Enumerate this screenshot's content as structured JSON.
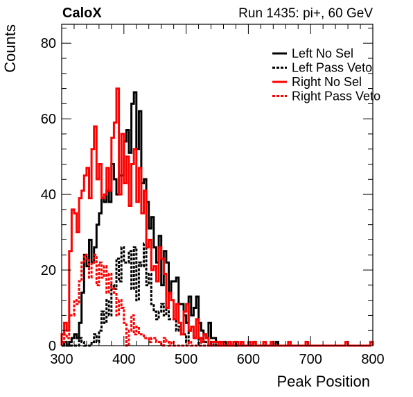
{
  "header": {
    "left_label": "CaloX",
    "right_label": "Run 1435: pi+, 60 GeV"
  },
  "chart_data": {
    "type": "line",
    "title": "",
    "xlabel": "Peak Position",
    "ylabel": "Counts",
    "xlim": [
      300,
      800
    ],
    "ylim": [
      0,
      85
    ],
    "x_ticks": [
      300,
      400,
      500,
      600,
      700,
      800
    ],
    "y_ticks": [
      0,
      20,
      40,
      60,
      80
    ],
    "bin_width": 4,
    "grid": false,
    "legend_position": "top-right",
    "series": [
      {
        "name": "Left No Sel",
        "color": "#000000",
        "style": "solid",
        "x": [
          300,
          304,
          308,
          312,
          316,
          320,
          324,
          328,
          332,
          336,
          340,
          344,
          348,
          352,
          356,
          360,
          364,
          368,
          372,
          376,
          380,
          384,
          388,
          392,
          396,
          400,
          404,
          408,
          412,
          416,
          420,
          424,
          428,
          432,
          436,
          440,
          444,
          448,
          452,
          456,
          460,
          464,
          468,
          472,
          476,
          480,
          484,
          488,
          492,
          496,
          500,
          504,
          508,
          512,
          516,
          520,
          524,
          528,
          532,
          536,
          540,
          544,
          548,
          552,
          556,
          560,
          564,
          568,
          572,
          576,
          580,
          584,
          588,
          592,
          596,
          600,
          604,
          608,
          612,
          616,
          620,
          624,
          628,
          632,
          636,
          640,
          644,
          648,
          652,
          656,
          660,
          664,
          668,
          672,
          676,
          680,
          684,
          688,
          692,
          696,
          700
        ],
        "values": [
          0,
          1,
          0,
          1,
          2,
          3,
          2,
          6,
          14,
          24,
          21,
          28,
          22,
          26,
          32,
          35,
          39,
          38,
          41,
          38,
          48,
          44,
          40,
          45,
          45,
          54,
          57,
          51,
          64,
          67,
          52,
          62,
          43,
          44,
          38,
          31,
          34,
          26,
          22,
          29,
          16,
          25,
          22,
          14,
          17,
          17,
          18,
          11,
          11,
          8,
          6,
          13,
          8,
          10,
          13,
          6,
          4,
          3,
          2,
          6,
          2,
          2,
          1,
          1,
          0,
          1,
          0,
          0,
          0,
          0,
          1,
          0,
          0,
          0,
          0,
          0,
          0,
          1,
          0,
          0,
          0,
          0,
          0,
          0,
          0,
          0,
          1,
          0,
          0,
          0,
          0,
          0,
          0,
          0,
          0,
          0,
          0,
          0,
          1,
          0,
          0
        ]
      },
      {
        "name": "Left Pass Veto",
        "color": "#000000",
        "style": "dashed",
        "x": [
          300,
          304,
          308,
          312,
          316,
          320,
          324,
          328,
          332,
          336,
          340,
          344,
          348,
          352,
          356,
          360,
          364,
          368,
          372,
          376,
          380,
          384,
          388,
          392,
          396,
          400,
          404,
          408,
          412,
          416,
          420,
          424,
          428,
          432,
          436,
          440,
          444,
          448,
          452,
          456,
          460,
          464,
          468,
          472,
          476,
          480,
          484,
          488,
          492,
          496,
          500,
          504,
          508,
          512,
          516,
          520,
          524,
          528,
          532,
          536,
          540,
          544,
          548,
          552,
          556,
          560,
          564,
          568,
          572,
          576,
          580,
          584,
          588,
          592,
          596,
          600,
          604,
          608,
          612,
          616,
          620,
          624,
          628,
          632,
          636,
          640,
          644,
          648,
          652,
          656,
          660,
          664,
          668,
          672,
          676,
          680,
          684,
          688,
          692,
          696,
          700
        ],
        "values": [
          0,
          0,
          0,
          0,
          0,
          0,
          0,
          2,
          1,
          0,
          0,
          0,
          1,
          3,
          1,
          4,
          9,
          6,
          12,
          8,
          16,
          15,
          23,
          17,
          26,
          22,
          22,
          25,
          15,
          26,
          12,
          22,
          21,
          27,
          16,
          19,
          11,
          9,
          7,
          9,
          11,
          8,
          10,
          7,
          7,
          7,
          4,
          5,
          3,
          3,
          1,
          4,
          4,
          2,
          2,
          0,
          2,
          1,
          1,
          0,
          0,
          1,
          0,
          0,
          0,
          0,
          0,
          0,
          0,
          0,
          0,
          0,
          0,
          0,
          0,
          0,
          0,
          0,
          0,
          0,
          0,
          0,
          0,
          0,
          0,
          0,
          0,
          0,
          0,
          0,
          0,
          0,
          0,
          0,
          0,
          0,
          0,
          0,
          0,
          0,
          0
        ]
      },
      {
        "name": "Right No Sel",
        "color": "#ff0000",
        "style": "solid",
        "x": [
          300,
          304,
          308,
          312,
          316,
          320,
          324,
          328,
          332,
          336,
          340,
          344,
          348,
          352,
          356,
          360,
          364,
          368,
          372,
          376,
          380,
          384,
          388,
          392,
          396,
          400,
          404,
          408,
          412,
          416,
          420,
          424,
          428,
          432,
          436,
          440,
          444,
          448,
          452,
          456,
          460,
          464,
          468,
          472,
          476,
          480,
          484,
          488,
          492,
          496,
          500,
          504,
          508,
          512,
          516,
          520,
          524,
          528,
          532,
          536,
          540,
          544,
          548,
          552,
          556,
          560,
          564,
          568,
          572,
          576,
          580,
          584,
          588,
          592,
          596,
          600,
          604,
          608,
          612,
          616,
          620,
          624,
          628,
          632,
          636,
          640,
          644,
          648,
          652,
          656,
          660,
          664,
          668,
          672,
          676,
          680,
          684,
          688,
          692,
          696,
          700,
          704,
          708,
          712,
          716,
          720,
          724,
          728,
          732,
          736,
          740,
          744,
          748,
          752,
          756,
          760,
          764,
          768,
          772,
          776,
          780,
          784,
          788,
          792,
          796
        ],
        "values": [
          3,
          6,
          4,
          25,
          36,
          35,
          30,
          39,
          41,
          45,
          47,
          39,
          52,
          58,
          44,
          48,
          39,
          40,
          47,
          41,
          55,
          59,
          68,
          40,
          56,
          43,
          50,
          37,
          48,
          52,
          38,
          47,
          35,
          41,
          26,
          28,
          20,
          21,
          17,
          26,
          23,
          19,
          10,
          14,
          12,
          7,
          11,
          6,
          3,
          9,
          11,
          4,
          5,
          2,
          7,
          2,
          1,
          3,
          2,
          0,
          1,
          1,
          1,
          0,
          1,
          0,
          0,
          1,
          0,
          1,
          1,
          0,
          1,
          0,
          0,
          1,
          0,
          1,
          0,
          0,
          0,
          1,
          0,
          0,
          1,
          0,
          0,
          0,
          0,
          0,
          0,
          1,
          0,
          0,
          0,
          0,
          0,
          0,
          1,
          0,
          0,
          0,
          0,
          0,
          0,
          0,
          0,
          0,
          0,
          0,
          0,
          0,
          0,
          0,
          1,
          0,
          0,
          0,
          0,
          0,
          0,
          0,
          0,
          0,
          1
        ]
      },
      {
        "name": "Right Pass Veto",
        "color": "#ff0000",
        "style": "dashed",
        "x": [
          300,
          304,
          308,
          312,
          316,
          320,
          324,
          328,
          332,
          336,
          340,
          344,
          348,
          352,
          356,
          360,
          364,
          368,
          372,
          376,
          380,
          384,
          388,
          392,
          396,
          400,
          404,
          408,
          412,
          416,
          420,
          424,
          428,
          432,
          436,
          440,
          444,
          448,
          452,
          456,
          460,
          464,
          468,
          472,
          476,
          480,
          484,
          488,
          492,
          496,
          500,
          504,
          508,
          512,
          516,
          520,
          524,
          528,
          532,
          536,
          540,
          544,
          548,
          552,
          556,
          560,
          564,
          568,
          572,
          576
        ],
        "values": [
          1,
          3,
          2,
          8,
          8,
          12,
          11,
          17,
          22,
          24,
          23,
          18,
          22,
          24,
          16,
          22,
          18,
          21,
          14,
          19,
          15,
          14,
          8,
          12,
          10,
          6,
          0,
          4,
          8,
          3,
          5,
          3,
          3,
          2,
          2,
          1,
          2,
          2,
          1,
          1,
          0,
          2,
          1,
          0,
          1,
          0,
          0,
          0,
          0,
          0,
          0,
          1,
          0,
          0,
          0,
          0,
          0,
          0,
          0,
          0,
          0,
          0,
          0,
          0,
          0,
          0,
          0,
          0,
          0,
          0
        ]
      }
    ]
  }
}
